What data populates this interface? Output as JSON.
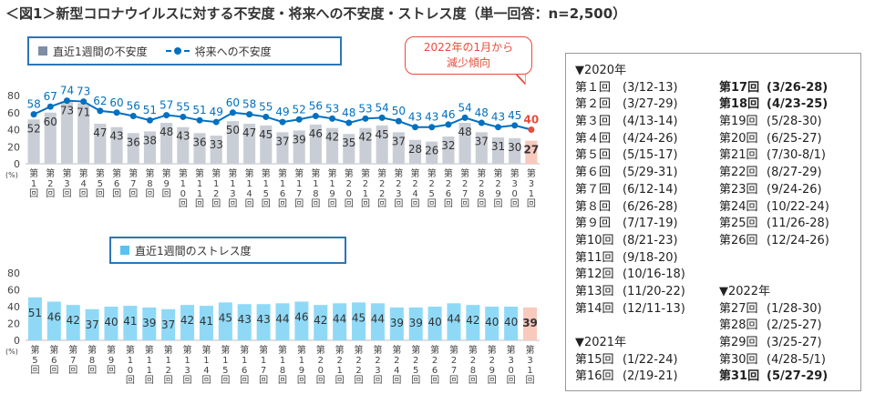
{
  "title": "＜図1＞新型コロナウイルスに対する不安度・将来への不安度・ストレス度（単一回答：n=2,500）",
  "legend1": {
    "bar": "直近1週間の不安度",
    "line": "将来への不安度"
  },
  "legend2": {
    "bar": "直近1週間のストレス度"
  },
  "callout": {
    "line1": "2022年の1月から",
    "line2": "減少傾向"
  },
  "colors": {
    "bar_gray": "#c9ced6",
    "bar_blue": "#8fd9f7",
    "bar_highlight": "#f8c9bd",
    "line": "#0070c0",
    "highlight_text": "#e74c3c"
  },
  "chart_data": [
    {
      "type": "bar+line",
      "unit": "(%)",
      "ylim": [
        0,
        80
      ],
      "yticks": [
        0,
        20,
        40,
        60,
        80
      ],
      "categories": [
        "第1回",
        "第2回",
        "第3回",
        "第4回",
        "第5回",
        "第6回",
        "第7回",
        "第8回",
        "第9回",
        "第10回",
        "第11回",
        "第12回",
        "第13回",
        "第14回",
        "第15回",
        "第16回",
        "第17回",
        "第18回",
        "第19回",
        "第20回",
        "第21回",
        "第22回",
        "第23回",
        "第24回",
        "第25回",
        "第26回",
        "第27回",
        "第28回",
        "第29回",
        "第30回",
        "第31回"
      ],
      "series": [
        {
          "name": "直近1週間の不安度",
          "kind": "bar",
          "values": [
            52,
            60,
            73,
            71,
            47,
            43,
            36,
            38,
            48,
            43,
            36,
            33,
            50,
            47,
            45,
            37,
            39,
            46,
            42,
            35,
            42,
            45,
            37,
            28,
            26,
            32,
            48,
            37,
            31,
            30,
            27
          ]
        },
        {
          "name": "将来への不安度",
          "kind": "line",
          "values": [
            58,
            67,
            74,
            73,
            62,
            60,
            56,
            51,
            57,
            55,
            51,
            49,
            60,
            58,
            55,
            49,
            52,
            56,
            53,
            48,
            53,
            54,
            50,
            43,
            43,
            46,
            54,
            48,
            43,
            45,
            40
          ]
        }
      ]
    },
    {
      "type": "bar",
      "unit": "(%)",
      "ylim": [
        0,
        80
      ],
      "yticks": [
        0,
        20,
        40,
        60,
        80
      ],
      "categories": [
        "第5回",
        "第6回",
        "第7回",
        "第8回",
        "第9回",
        "第10回",
        "第11回",
        "第12回",
        "第13回",
        "第14回",
        "第15回",
        "第16回",
        "第17回",
        "第18回",
        "第19回",
        "第20回",
        "第21回",
        "第22回",
        "第23回",
        "第24回",
        "第25回",
        "第26回",
        "第27回",
        "第28回",
        "第29回",
        "第30回",
        "第31回"
      ],
      "series": [
        {
          "name": "直近1週間のストレス度",
          "values": [
            51,
            46,
            42,
            37,
            40,
            41,
            39,
            37,
            42,
            41,
            45,
            43,
            43,
            44,
            46,
            42,
            44,
            45,
            44,
            39,
            39,
            40,
            44,
            42,
            40,
            40,
            39
          ]
        }
      ]
    }
  ],
  "schedule": {
    "col1": [
      {
        "type": "year",
        "text": "▼2020年"
      },
      {
        "type": "row",
        "n": "第１回",
        "d": "(3/12-13)"
      },
      {
        "type": "row",
        "n": "第２回",
        "d": "(3/27-29)"
      },
      {
        "type": "row",
        "n": "第３回",
        "d": "(4/13-14)"
      },
      {
        "type": "row",
        "n": "第４回",
        "d": "(4/24-26)"
      },
      {
        "type": "row",
        "n": "第５回",
        "d": "(5/15-17)"
      },
      {
        "type": "row",
        "n": "第６回",
        "d": "(5/29-31)"
      },
      {
        "type": "row",
        "n": "第７回",
        "d": "(6/12-14)"
      },
      {
        "type": "row",
        "n": "第８回",
        "d": "(6/26-28)"
      },
      {
        "type": "row",
        "n": "第９回",
        "d": "(7/17-19)"
      },
      {
        "type": "row",
        "n": "第10回",
        "d": "(8/21-23)"
      },
      {
        "type": "row",
        "n": "第11回",
        "d": "(9/18-20)"
      },
      {
        "type": "row",
        "n": "第12回",
        "d": "(10/16-18)"
      },
      {
        "type": "row",
        "n": "第13回",
        "d": "(11/20-22)"
      },
      {
        "type": "row",
        "n": "第14回",
        "d": "(12/11-13)"
      },
      {
        "type": "gap"
      },
      {
        "type": "year",
        "text": "▼2021年"
      },
      {
        "type": "row",
        "n": "第15回",
        "d": "(1/22-24)"
      },
      {
        "type": "row",
        "n": "第16回",
        "d": "(2/19-21)"
      }
    ],
    "col2": [
      {
        "type": "gap"
      },
      {
        "type": "row",
        "n": "第17回",
        "d": "(3/26-28)",
        "bold": true
      },
      {
        "type": "row",
        "n": "第18回",
        "d": "(4/23-25)",
        "bold": true
      },
      {
        "type": "row",
        "n": "第19回",
        "d": "(5/28-30)"
      },
      {
        "type": "row",
        "n": "第20回",
        "d": "(6/25-27)"
      },
      {
        "type": "row",
        "n": "第21回",
        "d": "(7/30-8/1)"
      },
      {
        "type": "row",
        "n": "第22回",
        "d": "(8/27-29)"
      },
      {
        "type": "row",
        "n": "第23回",
        "d": "(9/24-26)"
      },
      {
        "type": "row",
        "n": "第24回",
        "d": "(10/22-24)"
      },
      {
        "type": "row",
        "n": "第25回",
        "d": "(11/26-28)"
      },
      {
        "type": "row",
        "n": "第26回",
        "d": "(12/24-26)"
      },
      {
        "type": "gap"
      },
      {
        "type": "gap"
      },
      {
        "type": "year",
        "text": "▼2022年"
      },
      {
        "type": "row",
        "n": "第27回",
        "d": "(1/28-30)"
      },
      {
        "type": "row",
        "n": "第28回",
        "d": "(2/25-27)"
      },
      {
        "type": "row",
        "n": "第29回",
        "d": "(3/25-27)"
      },
      {
        "type": "row",
        "n": "第30回",
        "d": "(4/28-5/1)"
      },
      {
        "type": "row",
        "n": "第31回",
        "d": "(5/27-29)",
        "bold": true
      }
    ]
  }
}
